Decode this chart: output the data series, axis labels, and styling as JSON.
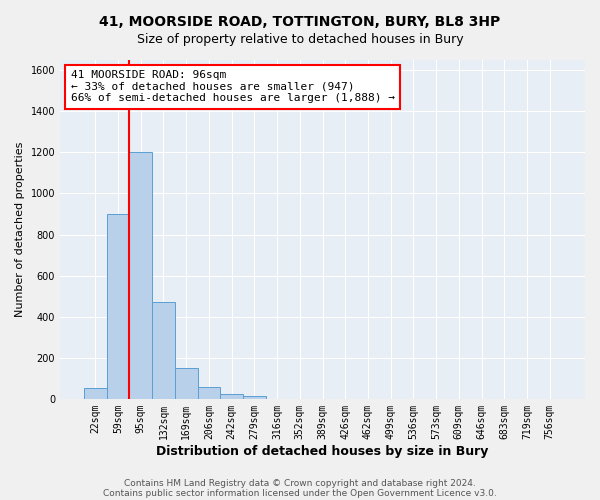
{
  "title1": "41, MOORSIDE ROAD, TOTTINGTON, BURY, BL8 3HP",
  "title2": "Size of property relative to detached houses in Bury",
  "xlabel": "Distribution of detached houses by size in Bury",
  "ylabel": "Number of detached properties",
  "bar_labels": [
    "22sqm",
    "59sqm",
    "95sqm",
    "132sqm",
    "169sqm",
    "206sqm",
    "242sqm",
    "279sqm",
    "316sqm",
    "352sqm",
    "389sqm",
    "426sqm",
    "462sqm",
    "499sqm",
    "536sqm",
    "573sqm",
    "609sqm",
    "646sqm",
    "683sqm",
    "719sqm",
    "756sqm"
  ],
  "bar_values": [
    55,
    900,
    1200,
    470,
    150,
    60,
    25,
    15,
    0,
    0,
    0,
    0,
    0,
    0,
    0,
    0,
    0,
    0,
    0,
    0,
    0
  ],
  "bar_color": "#b8d0ea",
  "bar_edge_color": "#5a9fd4",
  "bg_color": "#e8eef5",
  "grid_color": "#ffffff",
  "ylim": [
    0,
    1650
  ],
  "yticks": [
    0,
    200,
    400,
    600,
    800,
    1000,
    1200,
    1400,
    1600
  ],
  "red_line_index": 2,
  "annot_line1": "41 MOORSIDE ROAD: 96sqm",
  "annot_line2": "← 33% of detached houses are smaller (947)",
  "annot_line3": "66% of semi-detached houses are larger (1,888) →",
  "footer1": "Contains HM Land Registry data © Crown copyright and database right 2024.",
  "footer2": "Contains public sector information licensed under the Open Government Licence v3.0.",
  "fig_width": 6.0,
  "fig_height": 5.0,
  "title1_fontsize": 10,
  "title2_fontsize": 9,
  "ylabel_fontsize": 8,
  "xlabel_fontsize": 9,
  "tick_fontsize": 7,
  "annot_fontsize": 8,
  "footer_fontsize": 6.5
}
